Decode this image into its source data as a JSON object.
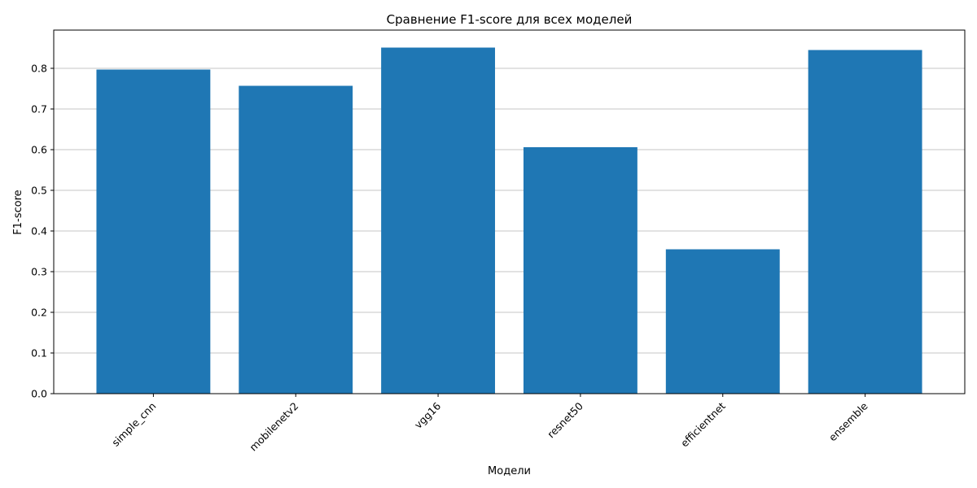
{
  "chart_data": {
    "type": "bar",
    "title": "Сравнение F1-score для всех моделей",
    "xlabel": "Модели",
    "ylabel": "F1-score",
    "categories": [
      "simple_cnn",
      "mobilenetv2",
      "vgg16",
      "resnet50",
      "efficientnet",
      "ensemble"
    ],
    "values": [
      0.797,
      0.757,
      0.851,
      0.606,
      0.355,
      0.845
    ],
    "ylim": [
      0,
      0.894
    ],
    "yticks": [
      0.0,
      0.1,
      0.2,
      0.3,
      0.4,
      0.5,
      0.6,
      0.7,
      0.8
    ],
    "ytick_labels": [
      "0.0",
      "0.1",
      "0.2",
      "0.3",
      "0.4",
      "0.5",
      "0.6",
      "0.7",
      "0.8"
    ],
    "grid": "y",
    "bar_color": "#1f77b4",
    "grid_color": "#b0b0b0"
  }
}
